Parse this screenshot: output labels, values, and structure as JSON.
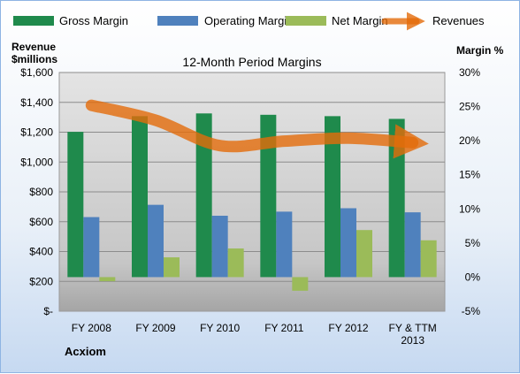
{
  "chart_data": {
    "type": "bar",
    "title": "12-Month Period Margins",
    "company": "Acxiom",
    "categories": [
      "FY 2008",
      "FY 2009",
      "FY 2010",
      "FY 2011",
      "FY 2012",
      "FY & TTM 2013"
    ],
    "series": [
      {
        "name": "Gross Margin",
        "axis": "right",
        "color": "#1f8a4c",
        "values": [
          21.3,
          23.6,
          24.0,
          23.8,
          23.6,
          23.2
        ]
      },
      {
        "name": "Operating Margin",
        "axis": "right",
        "color": "#4f81bd",
        "values": [
          8.8,
          10.6,
          9.0,
          9.6,
          10.1,
          9.5
        ]
      },
      {
        "name": "Net Margin",
        "axis": "right",
        "color": "#9bbb59",
        "values": [
          -0.6,
          2.9,
          4.2,
          -2.0,
          6.9,
          5.4
        ]
      },
      {
        "name": "Revenues",
        "axis": "left",
        "type": "line",
        "color": "#e46c0a",
        "values": [
          1380,
          1280,
          1110,
          1140,
          1160,
          1130
        ]
      }
    ],
    "y_left": {
      "label": "Revenue $millions",
      "label_lines": [
        "Revenue",
        "$millions"
      ],
      "ylim": [
        0,
        1600
      ],
      "ticks": [
        0,
        200,
        400,
        600,
        800,
        1000,
        1200,
        1400,
        1600
      ],
      "tick_labels": [
        "$-",
        "$200",
        "$400",
        "$600",
        "$800",
        "$1,000",
        "$1,200",
        "$1,400",
        "$1,600"
      ]
    },
    "y_right": {
      "label": "Margin %",
      "ylim": [
        -5,
        30
      ],
      "ticks": [
        -5,
        0,
        5,
        10,
        15,
        20,
        25,
        30
      ],
      "tick_labels": [
        "-5%",
        "0%",
        "5%",
        "10%",
        "15%",
        "20%",
        "25%",
        "30%"
      ]
    },
    "grid": true,
    "legend": "top"
  }
}
